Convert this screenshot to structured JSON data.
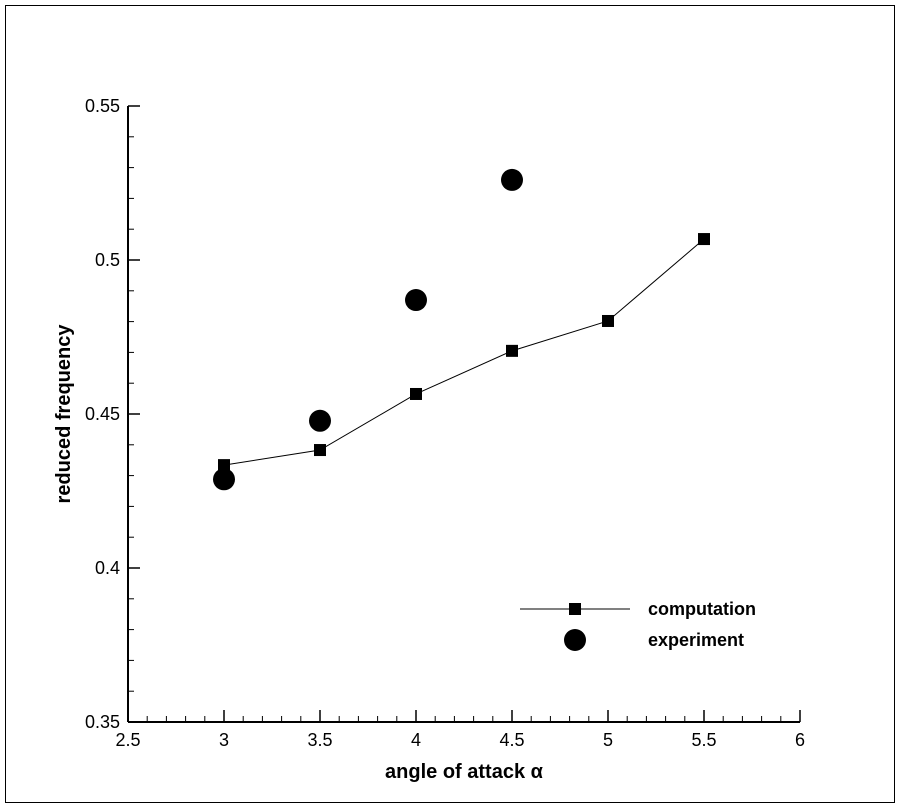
{
  "chart_data": {
    "type": "line",
    "xlabel": "angle of attack α",
    "ylabel": "reduced frequency",
    "xlim": [
      2.5,
      6
    ],
    "ylim": [
      0.35,
      0.55
    ],
    "xticks": [
      2.5,
      3,
      3.5,
      4,
      4.5,
      5,
      5.5,
      6
    ],
    "yticks": [
      0.35,
      0.4,
      0.45,
      0.5,
      0.55
    ],
    "xminorticks": [
      2.6,
      2.7,
      2.8,
      2.9,
      3.1,
      3.2,
      3.3,
      3.4,
      3.6,
      3.7,
      3.8,
      3.9,
      4.1,
      4.2,
      4.3,
      4.4,
      4.6,
      4.7,
      4.8,
      4.9,
      5.1,
      5.2,
      5.3,
      5.4,
      5.6,
      5.7,
      5.8,
      5.9
    ],
    "yminorticks": [
      0.36,
      0.37,
      0.38,
      0.39,
      0.41,
      0.42,
      0.43,
      0.44,
      0.46,
      0.47,
      0.48,
      0.49,
      0.51,
      0.52,
      0.53,
      0.54
    ],
    "series": [
      {
        "name": "computation",
        "color": "#000000",
        "marker": "square",
        "line": true,
        "x": [
          3,
          3.5,
          4,
          4.5,
          5,
          5.5
        ],
        "values": [
          0.4334,
          0.4383,
          0.4565,
          0.4705,
          0.4802,
          0.5068
        ]
      },
      {
        "name": "experiment",
        "color": "#000000",
        "marker": "circle",
        "line": false,
        "x": [
          3,
          3.5,
          4,
          4.5
        ],
        "values": [
          0.4288,
          0.4478,
          0.487,
          0.526
        ]
      }
    ]
  }
}
